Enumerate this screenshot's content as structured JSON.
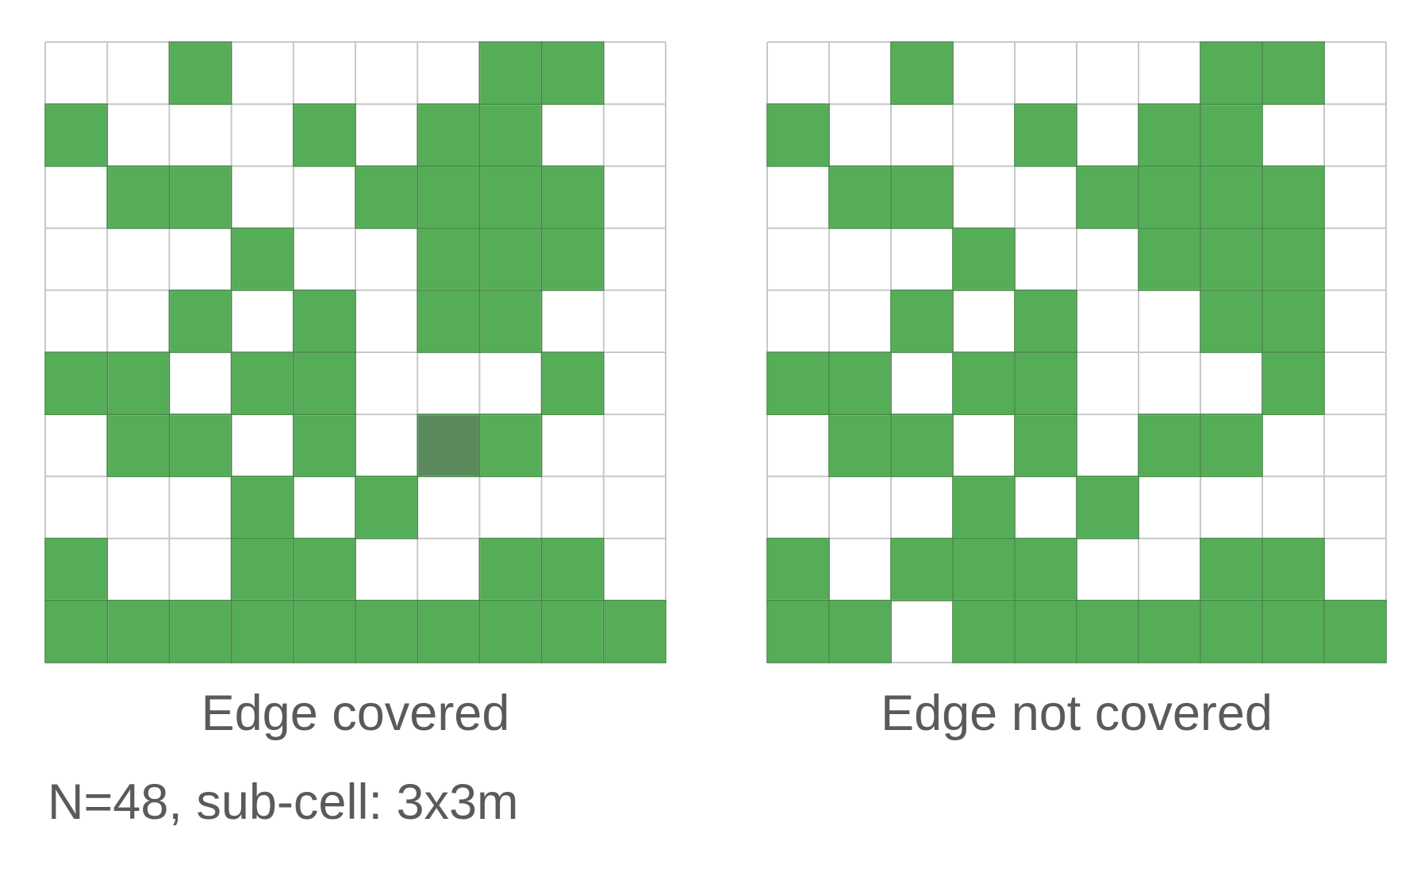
{
  "colors": {
    "filled": "#55ad57",
    "highlight": "#5a8a5c",
    "empty": "#ffffff",
    "grid_line": "#c8c8c8",
    "filled_border": "#3f8a42",
    "text": "#5a5a5a"
  },
  "legend": {
    "filled": "green cell",
    "empty": "white cell",
    "highlight": "dark green cell"
  },
  "panels": [
    {
      "caption": "Edge covered",
      "grid": [
        "0010000110",
        "1000101100",
        "0110011110",
        "0001001110",
        "0010101100",
        "1101100010",
        "0110102100",
        "0001010000",
        "1001100110",
        "1111111111"
      ]
    },
    {
      "caption": "Edge not covered",
      "grid": [
        "0010000110",
        "1000101100",
        "0110011110",
        "0001001110",
        "0010100110",
        "1101100010",
        "0110101100",
        "0001010000",
        "1011100110",
        "1101111111"
      ]
    }
  ],
  "footnote": "N=48, sub-cell: 3x3m"
}
